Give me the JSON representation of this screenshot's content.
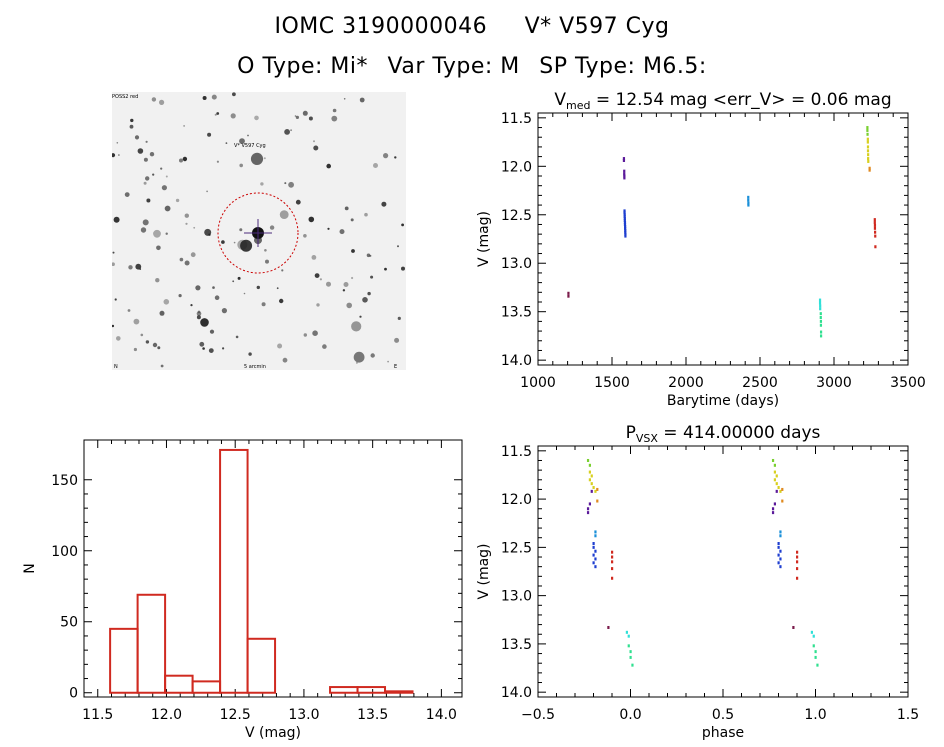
{
  "header": {
    "object_name": "IOMC 3190000046",
    "star_name": "V* V597 Cyg",
    "o_type": "O Type: Mi*",
    "var_type": "Var Type: M",
    "sp_type": "SP Type: M6.5:"
  },
  "sky_image": {
    "label_top_left": "POSS2 red",
    "label_target": "V* V597 Cyg",
    "label_bottom_center": "5 arcmin",
    "label_bottom_left": "N",
    "label_bottom_right": "E"
  },
  "chart_data": [
    {
      "type": "scatter",
      "id": "lightcurve",
      "title_prefix": "V",
      "title_sub": "med",
      "title_rest": " = 12.54 mag <err_V> = 0.06 mag",
      "xlabel": "Barytime (days)",
      "ylabel": "V (mag)",
      "xlim": [
        1000,
        3500
      ],
      "ylim": [
        14.05,
        11.45
      ],
      "xticks": [
        1000,
        1500,
        2000,
        2500,
        3000,
        3500
      ],
      "xtick_labels": [
        "1000",
        "1500",
        "2000",
        "2500",
        "3000",
        "3500"
      ],
      "yticks": [
        11.5,
        12.0,
        12.5,
        13.0,
        13.5,
        14.0
      ],
      "ytick_labels": [
        "11.5",
        "12.0",
        "12.5",
        "13.0",
        "13.5",
        "14.0"
      ],
      "series": [
        {
          "name": "season1",
          "color": "#7a1a4a",
          "points": [
            [
              1205,
              13.31
            ],
            [
              1205,
              13.34
            ]
          ]
        },
        {
          "name": "season2a",
          "color": "#5b1a9a",
          "points": [
            [
              1580,
              11.92
            ],
            [
              1580,
              11.94
            ],
            [
              1582,
              12.05
            ],
            [
              1582,
              12.08
            ],
            [
              1583,
              12.1
            ],
            [
              1583,
              12.12
            ]
          ]
        },
        {
          "name": "season2b",
          "color": "#1f3fd0",
          "points": [
            [
              1584,
              12.46
            ],
            [
              1584,
              12.48
            ],
            [
              1585,
              12.5
            ],
            [
              1585,
              12.52
            ],
            [
              1586,
              12.54
            ],
            [
              1586,
              12.56
            ],
            [
              1587,
              12.58
            ],
            [
              1587,
              12.6
            ],
            [
              1588,
              12.62
            ],
            [
              1588,
              12.64
            ],
            [
              1589,
              12.66
            ],
            [
              1589,
              12.68
            ],
            [
              1590,
              12.7
            ],
            [
              1590,
              12.72
            ]
          ]
        },
        {
          "name": "season3",
          "color": "#1a8fd8",
          "points": [
            [
              2420,
              12.32
            ],
            [
              2420,
              12.35
            ],
            [
              2421,
              12.38
            ],
            [
              2421,
              12.4
            ]
          ]
        },
        {
          "name": "season4a",
          "color": "#30e0d8",
          "points": [
            [
              2905,
              13.38
            ],
            [
              2905,
              13.41
            ],
            [
              2906,
              13.44
            ],
            [
              2906,
              13.47
            ]
          ]
        },
        {
          "name": "season4b",
          "color": "#30e090",
          "points": [
            [
              2910,
              13.52
            ],
            [
              2910,
              13.56
            ],
            [
              2911,
              13.6
            ],
            [
              2911,
              13.64
            ],
            [
              2912,
              13.71
            ],
            [
              2912,
              13.75
            ]
          ]
        },
        {
          "name": "season5a",
          "color": "#7ad030",
          "points": [
            [
              3225,
              11.6
            ],
            [
              3225,
              11.63
            ],
            [
              3226,
              11.67
            ]
          ]
        },
        {
          "name": "season5b",
          "color": "#d8d020",
          "points": [
            [
              3228,
              11.72
            ],
            [
              3228,
              11.75
            ],
            [
              3229,
              11.8
            ],
            [
              3229,
              11.84
            ],
            [
              3230,
              11.88
            ],
            [
              3230,
              11.92
            ],
            [
              3231,
              11.95
            ]
          ]
        },
        {
          "name": "season5c",
          "color": "#e08a20",
          "points": [
            [
              3240,
              12.02
            ],
            [
              3240,
              12.04
            ]
          ]
        },
        {
          "name": "season5d",
          "color": "#d02a20",
          "points": [
            [
              3275,
              12.55
            ],
            [
              3275,
              12.58
            ],
            [
              3276,
              12.61
            ],
            [
              3276,
              12.64
            ],
            [
              3277,
              12.68
            ],
            [
              3278,
              12.72
            ],
            [
              3279,
              12.83
            ]
          ]
        }
      ]
    },
    {
      "type": "bar",
      "id": "histogram",
      "xlabel": "V (mag)",
      "ylabel": "N",
      "xlim": [
        11.4,
        14.15
      ],
      "ylim": [
        -3,
        178
      ],
      "xticks": [
        11.5,
        12.0,
        12.5,
        13.0,
        13.5,
        14.0
      ],
      "xtick_labels": [
        "11.5",
        "12.0",
        "12.5",
        "13.0",
        "13.5",
        "14.0"
      ],
      "yticks": [
        0,
        50,
        100,
        150
      ],
      "ytick_labels": [
        "0",
        "50",
        "100",
        "150"
      ],
      "bin_edges": [
        11.59,
        11.79,
        11.99,
        12.19,
        12.39,
        12.59,
        12.79,
        12.99,
        13.19,
        13.39,
        13.59,
        13.79,
        13.99
      ],
      "values": [
        45,
        69,
        12,
        8,
        171,
        38,
        0,
        0,
        4,
        4,
        1,
        0
      ],
      "color": "#d02a20"
    },
    {
      "type": "scatter",
      "id": "phased",
      "title_prefix": "P",
      "title_sub": "VSX",
      "title_rest": " = 414.00000 days",
      "xlabel": "phase",
      "ylabel": "V (mag)",
      "xlim": [
        -0.5,
        1.5
      ],
      "ylim": [
        14.05,
        11.45
      ],
      "xticks": [
        -0.5,
        0.0,
        0.5,
        1.0,
        1.5
      ],
      "xtick_labels": [
        "−0.5",
        "0.0",
        "0.5",
        "1.0",
        "1.5"
      ],
      "yticks": [
        11.5,
        12.0,
        12.5,
        13.0,
        13.5,
        14.0
      ],
      "ytick_labels": [
        "11.5",
        "12.0",
        "12.5",
        "13.0",
        "13.5",
        "14.0"
      ],
      "series": [
        {
          "name": "s1",
          "color": "#7a1a4a",
          "points": [
            [
              -0.12,
              13.33
            ],
            [
              0.88,
              13.33
            ]
          ]
        },
        {
          "name": "s2a",
          "color": "#5b1a9a",
          "points": [
            [
              -0.21,
              11.92
            ],
            [
              -0.22,
              12.05
            ],
            [
              -0.23,
              12.1
            ],
            [
              -0.23,
              12.14
            ],
            [
              0.79,
              11.92
            ],
            [
              0.78,
              12.05
            ],
            [
              0.77,
              12.1
            ],
            [
              0.77,
              12.14
            ]
          ]
        },
        {
          "name": "s2b",
          "color": "#1f3fd0",
          "points": [
            [
              -0.2,
              12.46
            ],
            [
              -0.2,
              12.5
            ],
            [
              -0.19,
              12.54
            ],
            [
              -0.2,
              12.58
            ],
            [
              -0.19,
              12.62
            ],
            [
              -0.2,
              12.66
            ],
            [
              -0.19,
              12.7
            ],
            [
              0.8,
              12.46
            ],
            [
              0.8,
              12.5
            ],
            [
              0.81,
              12.54
            ],
            [
              0.8,
              12.58
            ],
            [
              0.81,
              12.62
            ],
            [
              0.8,
              12.66
            ],
            [
              0.81,
              12.7
            ]
          ]
        },
        {
          "name": "s3",
          "color": "#1a8fd8",
          "points": [
            [
              -0.19,
              12.34
            ],
            [
              -0.19,
              12.38
            ],
            [
              0.81,
              12.34
            ],
            [
              0.81,
              12.38
            ]
          ]
        },
        {
          "name": "s4a",
          "color": "#30e0d8",
          "points": [
            [
              -0.02,
              13.38
            ],
            [
              -0.01,
              13.42
            ],
            [
              0.98,
              13.38
            ],
            [
              0.99,
              13.42
            ]
          ]
        },
        {
          "name": "s4b",
          "color": "#30e090",
          "points": [
            [
              -0.01,
              13.52
            ],
            [
              0.0,
              13.58
            ],
            [
              0.0,
              13.64
            ],
            [
              0.01,
              13.72
            ],
            [
              0.99,
              13.52
            ],
            [
              1.0,
              13.58
            ],
            [
              1.0,
              13.64
            ],
            [
              1.01,
              13.72
            ]
          ]
        },
        {
          "name": "s5a",
          "color": "#7ad030",
          "points": [
            [
              -0.23,
              11.6
            ],
            [
              -0.22,
              11.65
            ],
            [
              0.77,
              11.6
            ],
            [
              0.78,
              11.65
            ]
          ]
        },
        {
          "name": "s5b",
          "color": "#d8d020",
          "points": [
            [
              -0.22,
              11.72
            ],
            [
              -0.21,
              11.76
            ],
            [
              -0.22,
              11.8
            ],
            [
              -0.21,
              11.84
            ],
            [
              -0.2,
              11.88
            ],
            [
              -0.19,
              11.92
            ],
            [
              0.78,
              11.72
            ],
            [
              0.79,
              11.76
            ],
            [
              0.78,
              11.8
            ],
            [
              0.79,
              11.84
            ],
            [
              0.8,
              11.88
            ],
            [
              0.81,
              11.92
            ]
          ]
        },
        {
          "name": "s5c",
          "color": "#e08a20",
          "points": [
            [
              -0.18,
              11.9
            ],
            [
              -0.18,
              12.02
            ],
            [
              0.82,
              11.9
            ],
            [
              0.82,
              12.02
            ]
          ]
        },
        {
          "name": "s5d",
          "color": "#d02a20",
          "points": [
            [
              -0.1,
              12.55
            ],
            [
              -0.1,
              12.6
            ],
            [
              -0.1,
              12.65
            ],
            [
              -0.1,
              12.72
            ],
            [
              -0.1,
              12.82
            ],
            [
              0.9,
              12.55
            ],
            [
              0.9,
              12.6
            ],
            [
              0.9,
              12.65
            ],
            [
              0.9,
              12.72
            ],
            [
              0.9,
              12.82
            ]
          ]
        }
      ]
    }
  ]
}
